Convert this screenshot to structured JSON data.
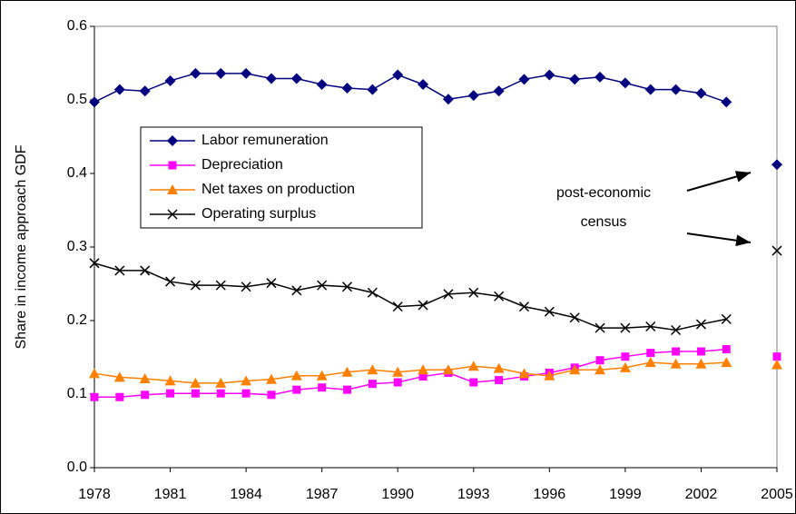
{
  "chart_data": {
    "type": "line",
    "y_label": "Share in income approach GDF",
    "x": [
      1978,
      1979,
      1980,
      1981,
      1982,
      1983,
      1984,
      1985,
      1986,
      1987,
      1988,
      1989,
      1990,
      1991,
      1992,
      1993,
      1994,
      1995,
      1996,
      1997,
      1998,
      1999,
      2000,
      2001,
      2002,
      2003,
      2004,
      2005
    ],
    "series": [
      {
        "name": "Labor remuneration",
        "color": "#000080",
        "marker": "diamond",
        "values": [
          0.497,
          0.514,
          0.512,
          0.526,
          0.536,
          0.536,
          0.536,
          0.529,
          0.529,
          0.521,
          0.516,
          0.514,
          0.534,
          0.521,
          0.501,
          0.506,
          0.512,
          0.528,
          0.534,
          0.528,
          0.531,
          0.523,
          0.514,
          0.514,
          0.509,
          0.497,
          null,
          0.412
        ]
      },
      {
        "name": "Depreciation",
        "color": "#ff00ff",
        "marker": "square",
        "values": [
          0.096,
          0.096,
          0.099,
          0.101,
          0.101,
          0.101,
          0.101,
          0.099,
          0.106,
          0.109,
          0.106,
          0.114,
          0.116,
          0.124,
          0.129,
          0.116,
          0.119,
          0.124,
          0.129,
          0.136,
          0.146,
          0.151,
          0.156,
          0.158,
          0.158,
          0.161,
          null,
          0.151
        ]
      },
      {
        "name": "Net taxes on production",
        "color": "#ff8000",
        "marker": "triangle",
        "values": [
          0.128,
          0.123,
          0.121,
          0.118,
          0.115,
          0.115,
          0.118,
          0.12,
          0.125,
          0.125,
          0.13,
          0.133,
          0.13,
          0.133,
          0.133,
          0.138,
          0.135,
          0.128,
          0.125,
          0.133,
          0.133,
          0.136,
          0.143,
          0.141,
          0.141,
          0.143,
          null,
          0.14
        ]
      },
      {
        "name": "Operating surplus",
        "color": "#000000",
        "marker": "x",
        "values": [
          0.278,
          0.268,
          0.268,
          0.253,
          0.248,
          0.248,
          0.246,
          0.251,
          0.241,
          0.248,
          0.246,
          0.238,
          0.219,
          0.221,
          0.236,
          0.238,
          0.233,
          0.219,
          0.212,
          0.204,
          0.19,
          0.19,
          0.192,
          0.187,
          0.195,
          0.202,
          null,
          0.295
        ]
      }
    ],
    "xlim": [
      1978,
      2005
    ],
    "xticks": [
      1978,
      1981,
      1984,
      1987,
      1990,
      1993,
      1996,
      1999,
      2002,
      2005
    ],
    "ylim": [
      0,
      0.6
    ],
    "yticks": [
      {
        "value": 0,
        "label": "0.0"
      },
      0.1,
      0.2,
      0.3,
      0.4,
      0.5,
      0.6
    ],
    "annotation": [
      "post-economic",
      "census"
    ],
    "grid": false,
    "legend": "upper left"
  }
}
